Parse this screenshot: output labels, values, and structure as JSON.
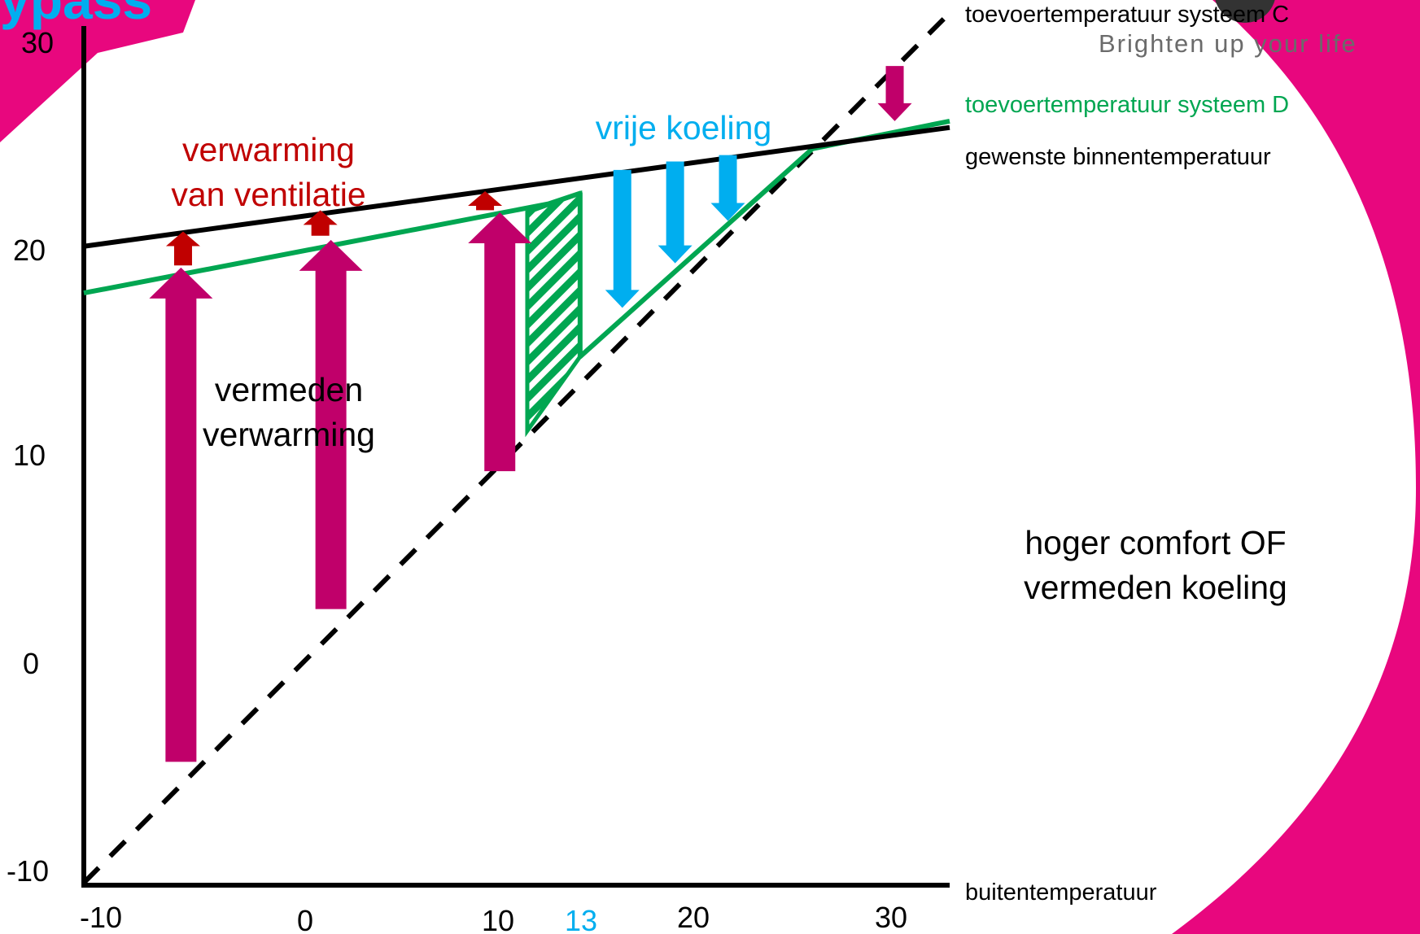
{
  "slide": {
    "title_fragment": "ypass",
    "slogan": "Brighten up your life"
  },
  "colors": {
    "background_brand": "#e8077e",
    "axes": "#000000",
    "supply_c": "#000000",
    "supply_d": "#00a651",
    "heating_arrow": "#c0006a",
    "ventilation_arrow": "#c00000",
    "free_cooling_arrow": "#00aeef",
    "free_cooling_text": "#00aeef"
  },
  "chart_data": {
    "type": "line",
    "xlim": [
      -10,
      31
    ],
    "ylim": [
      -10,
      30
    ],
    "x_ticks": [
      -10,
      0,
      10,
      13,
      20,
      30
    ],
    "x_tick_labels": [
      "-10",
      "0",
      "10",
      "13",
      "20",
      "30"
    ],
    "highlight_tick": "13",
    "y_ticks": [
      -10,
      0,
      10,
      20,
      30
    ],
    "y_tick_labels": [
      "-10",
      "0",
      "10",
      "20",
      "30"
    ],
    "xlabel": "buitentemperatuur",
    "grid": false,
    "legend": "right",
    "series": [
      {
        "name": "toevoertemperatuur systeem C",
        "style": "dashed",
        "color": "#000000",
        "x": [
          -10,
          31
        ],
        "y": [
          -10,
          31
        ]
      },
      {
        "name": "toevoertemperatuur systeem D",
        "style": "solid",
        "color": "#00a651",
        "x": [
          -10,
          12,
          13.5,
          13.5,
          24.5,
          31
        ],
        "y": [
          17.8,
          22,
          22.5,
          14.8,
          24.6,
          25.9
        ]
      },
      {
        "name": "gewenste binnentemperatuur",
        "style": "solid",
        "color": "#000000",
        "x": [
          -10,
          31
        ],
        "y": [
          20,
          25.6
        ]
      }
    ],
    "hatched_region": {
      "x": [
        11,
        13.5,
        13.5,
        11
      ],
      "y": [
        11.3,
        14.8,
        22.5,
        21.6
      ],
      "color": "#00a651"
    },
    "arrows": {
      "avoided_heating": [
        {
          "x": -5.4,
          "from": -4.3,
          "to": 19.0
        },
        {
          "x": 1.7,
          "from": 2.9,
          "to": 20.3
        },
        {
          "x": 9.7,
          "from": 9.4,
          "to": 21.6
        }
      ],
      "ventilation_heating": [
        {
          "x": -5.3,
          "from": 19.1,
          "to": 20.7
        },
        {
          "x": 1.2,
          "from": 20.5,
          "to": 21.7
        },
        {
          "x": 9.0,
          "from": 21.7,
          "to": 22.6
        }
      ],
      "free_cooling": [
        {
          "x": 15.5,
          "from": 23.6,
          "to": 17.1
        },
        {
          "x": 18.0,
          "from": 24.0,
          "to": 19.2
        },
        {
          "x": 20.5,
          "from": 24.3,
          "to": 21.2
        }
      ],
      "comfort": [
        {
          "x": 28.4,
          "from": 28.5,
          "to": 25.9
        }
      ]
    },
    "annotations": {
      "heating_ventilation": [
        "verwarming",
        "van ventilatie"
      ],
      "free_cooling": "vrije koeling",
      "avoided_heating": [
        "vermeden",
        "verwarming"
      ],
      "comfort": [
        "hoger comfort OF",
        "vermeden koeling"
      ]
    }
  }
}
